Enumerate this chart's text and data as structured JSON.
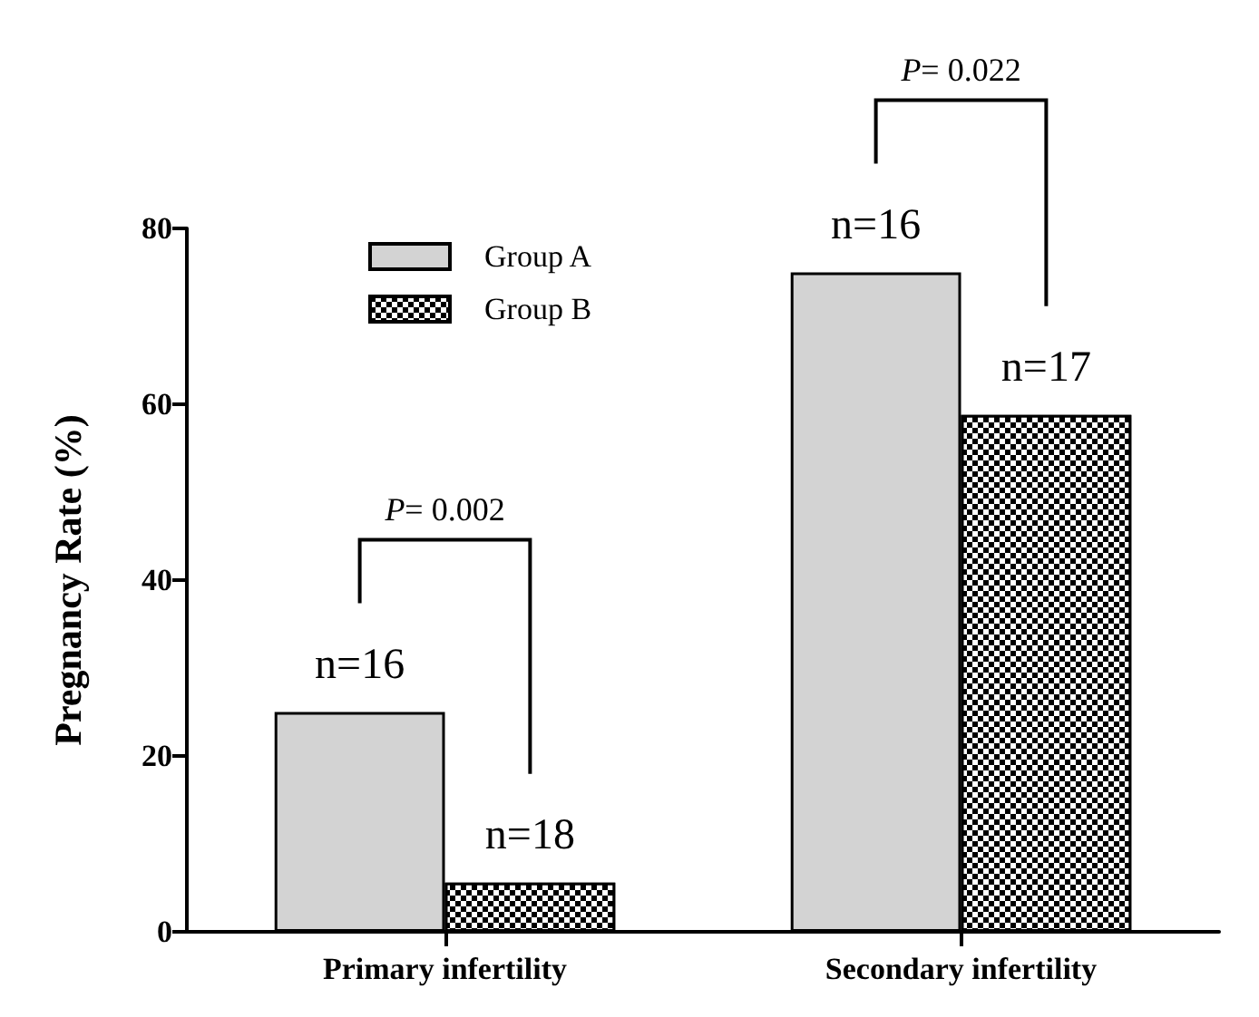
{
  "chart_data": {
    "type": "bar",
    "ylabel": "Pregnancy Rate (%)",
    "categories": [
      "Primary infertility",
      "Secondary infertility"
    ],
    "series": [
      {
        "name": "Group A",
        "color": "#d3d3d3",
        "values": [
          25,
          75
        ]
      },
      {
        "name": "Group B",
        "color": "#000000",
        "values": [
          5.6,
          58.8
        ]
      }
    ],
    "ylim": [
      0,
      80
    ],
    "yticks": [
      0,
      20,
      40,
      60,
      80
    ],
    "grid": false,
    "legend": "top left",
    "annotations": [
      "P= 0.002",
      "P= 0.022",
      {
        "text": "n=16",
        "x": "Primary infertility",
        "y": 25
      },
      {
        "text": "n=18",
        "x": "Primary infertility",
        "y": 5.6
      },
      {
        "text": "n=16",
        "x": "Secondary infertility",
        "y": 75
      },
      {
        "text": "n=17",
        "x": "Secondary infertility",
        "y": 58.8
      }
    ]
  }
}
